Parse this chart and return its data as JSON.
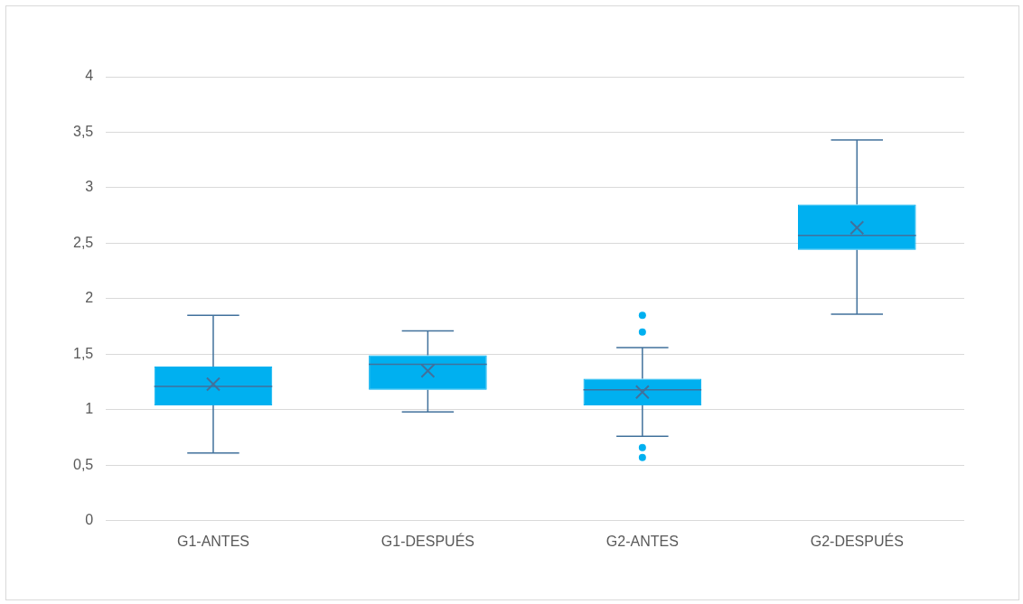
{
  "chart_data": {
    "type": "box",
    "categories": [
      "G1-ANTES",
      "G1-DESPUÉS",
      "G2-ANTES",
      "G2-DESPUÉS"
    ],
    "color": "#00b0f0",
    "boxes": [
      {
        "low": 0.61,
        "q1": 1.04,
        "median": 1.21,
        "q3": 1.39,
        "high": 1.85,
        "mean": 1.23
      },
      {
        "low": 0.98,
        "q1": 1.18,
        "median": 1.41,
        "q3": 1.49,
        "high": 1.71,
        "mean": 1.35
      },
      {
        "low": 0.76,
        "q1": 1.04,
        "median": 1.18,
        "q3": 1.28,
        "high": 1.56,
        "mean": 1.16,
        "outliers": [
          1.85,
          1.7,
          0.66,
          0.57
        ]
      },
      {
        "low": 1.86,
        "q1": 2.44,
        "median": 2.57,
        "q3": 2.85,
        "high": 3.43,
        "mean": 2.64
      }
    ],
    "ylim": [
      0,
      4
    ],
    "yticks": [
      0,
      {
        "value": 0.5,
        "label": "0,5"
      },
      1,
      {
        "value": 1.5,
        "label": "1,5"
      },
      2,
      {
        "value": 2.5,
        "label": "2,5"
      },
      3,
      {
        "value": 3.5,
        "label": "3,5"
      },
      4
    ],
    "grid": "y",
    "legend": false
  }
}
